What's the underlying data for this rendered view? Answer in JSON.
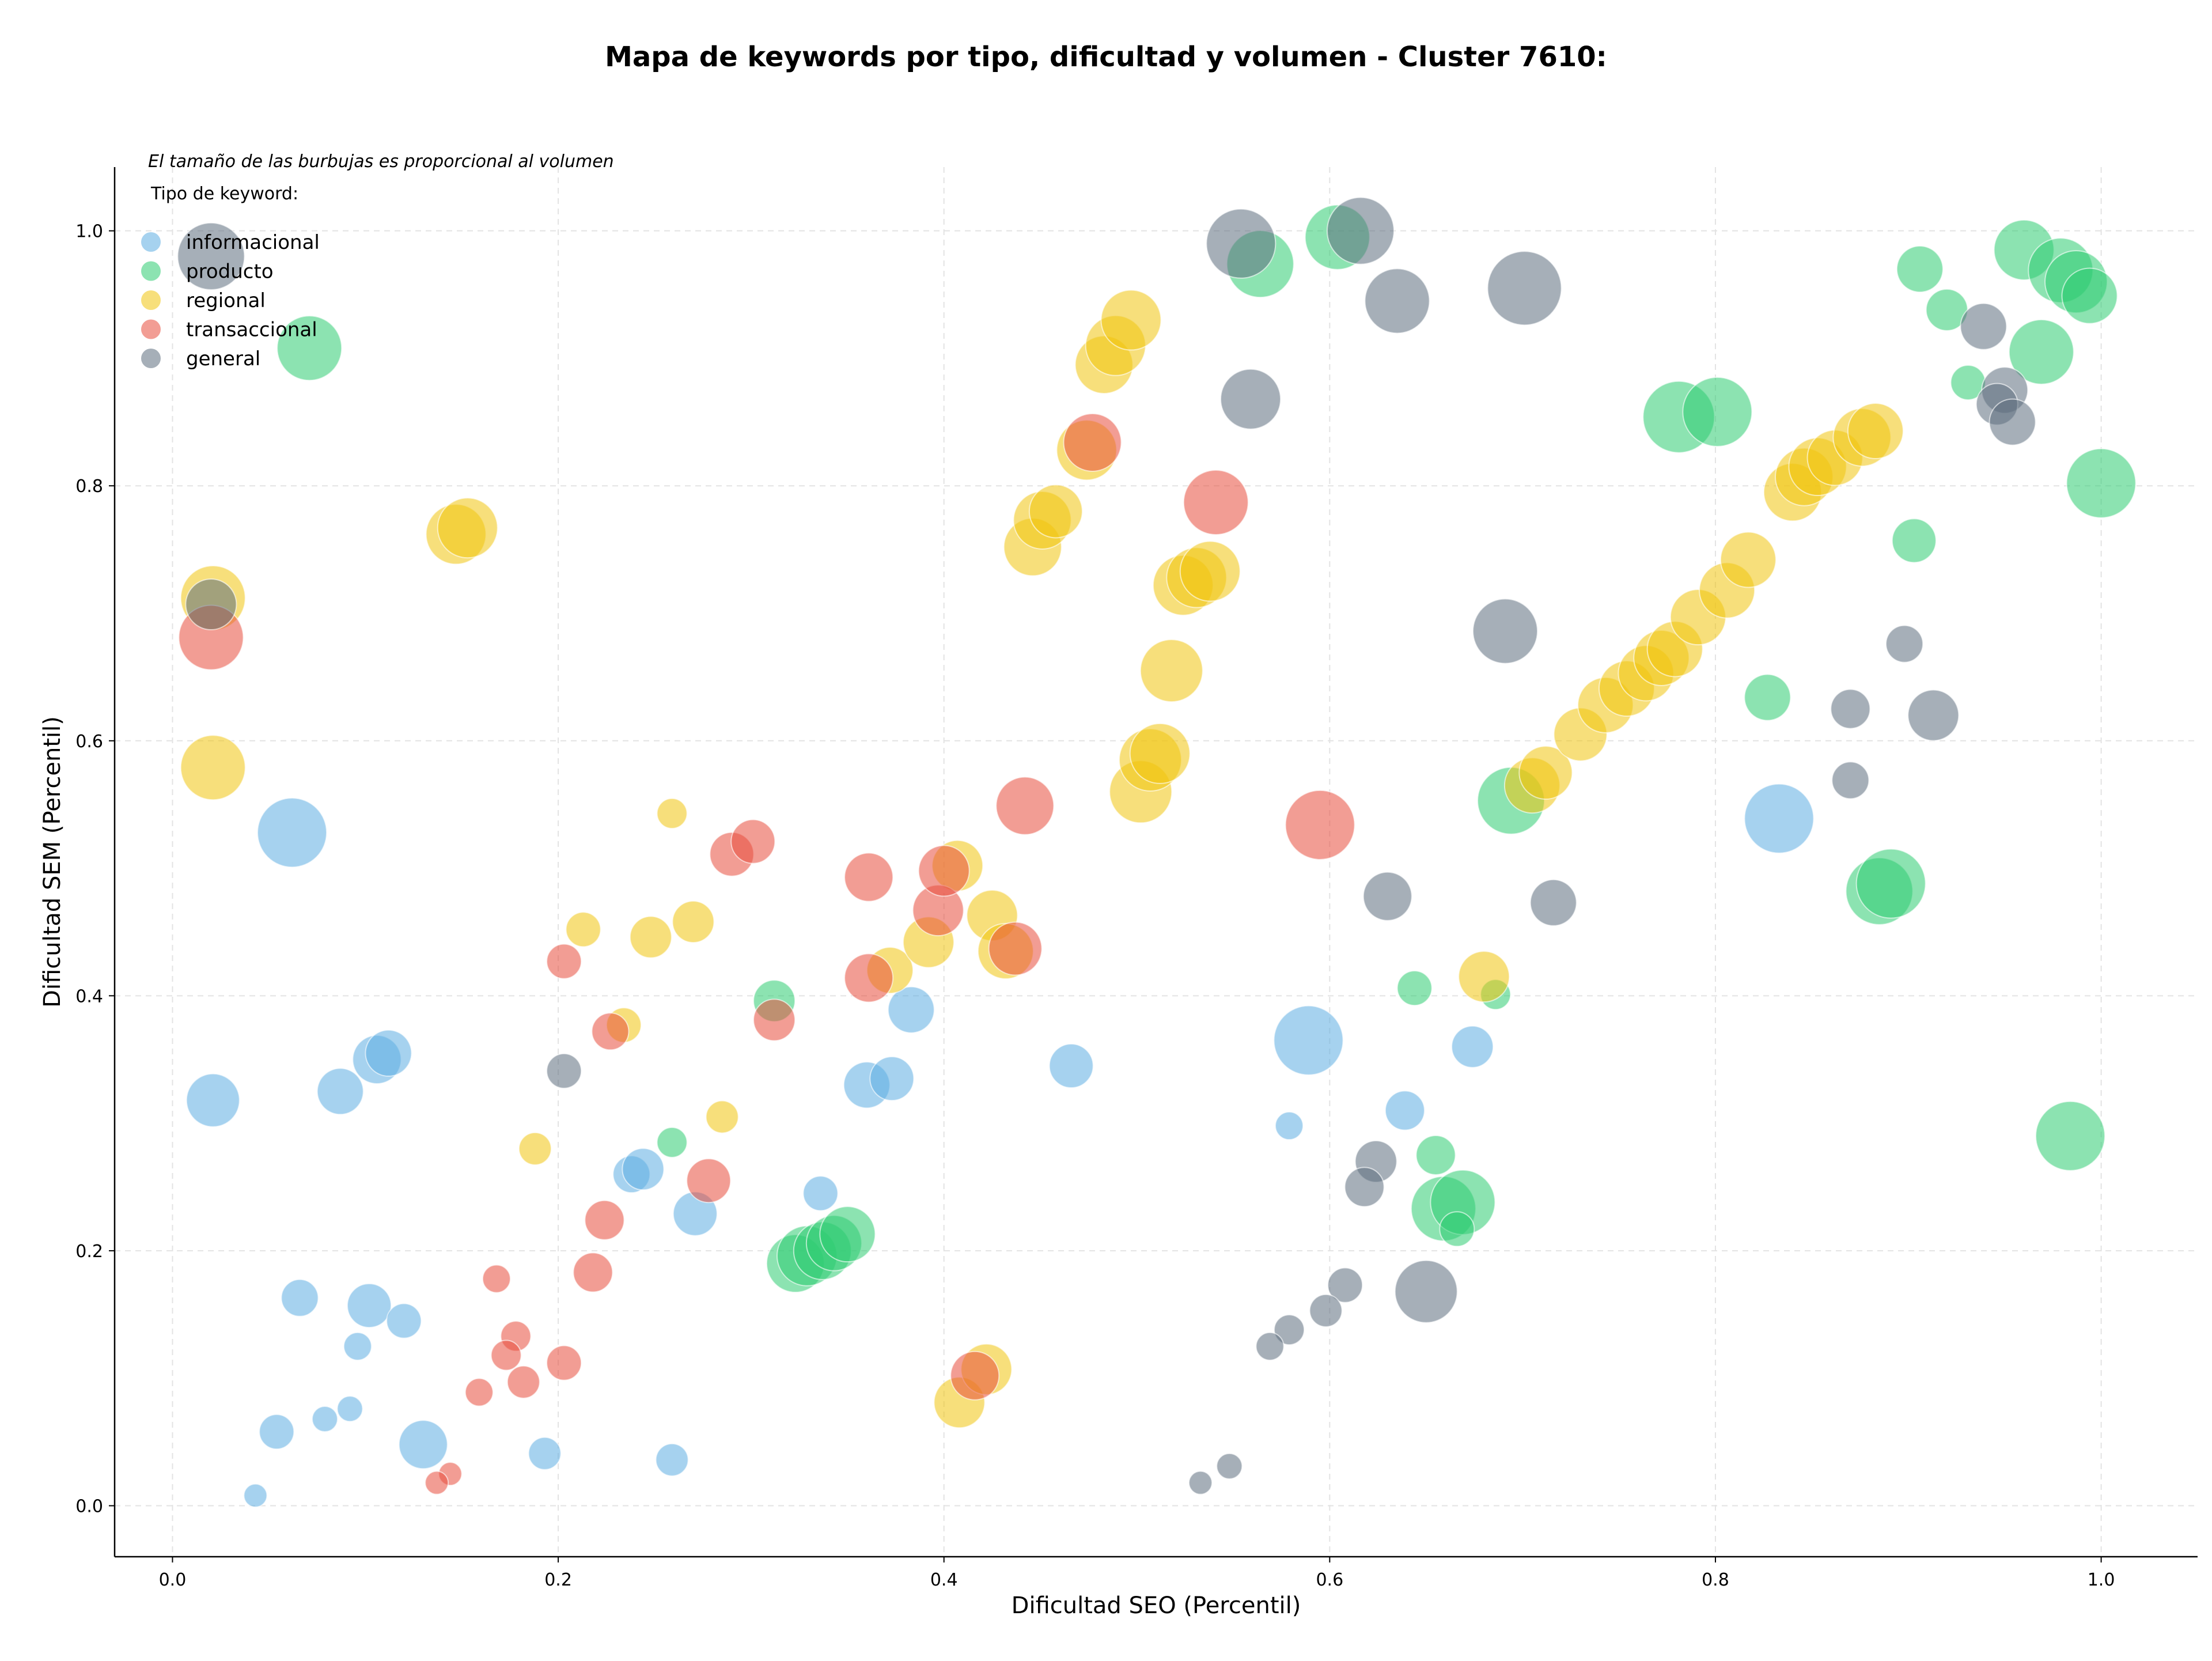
{
  "chart_data": {
    "type": "scatter",
    "title": "Mapa de keywords por tipo, dificultad y volumen - Cluster 7610:",
    "xlabel": "Dificultad SEO (Percentil)",
    "ylabel": "Dificultad SEM (Percentil)",
    "note": "El tamaño de las burbujas es proporcional al volumen",
    "legend_title": "Tipo de keyword:",
    "legend_position": "top-left",
    "grid": true,
    "xlim": [
      -0.03,
      1.05
    ],
    "ylim": [
      -0.04,
      1.05
    ],
    "xticks": [
      0.0,
      0.2,
      0.4,
      0.6,
      0.8,
      1.0
    ],
    "yticks": [
      0.0,
      0.2,
      0.4,
      0.6,
      0.8,
      1.0
    ],
    "xtick_labels": [
      "0.0",
      "0.2",
      "0.4",
      "0.6",
      "0.8",
      "1.0"
    ],
    "ytick_labels": [
      "0.0",
      "0.2",
      "0.4",
      "0.6",
      "0.8",
      "1.0"
    ],
    "series": [
      {
        "name": "informacional",
        "color": "#5DADE2",
        "points": [
          [
            0.062,
            0.528,
            60
          ],
          [
            0.021,
            0.318,
            46
          ],
          [
            0.087,
            0.325,
            40
          ],
          [
            0.106,
            0.35,
            42
          ],
          [
            0.112,
            0.355,
            40
          ],
          [
            0.066,
            0.163,
            32
          ],
          [
            0.102,
            0.157,
            38
          ],
          [
            0.12,
            0.145,
            30
          ],
          [
            0.096,
            0.125,
            24
          ],
          [
            0.054,
            0.058,
            30
          ],
          [
            0.079,
            0.068,
            22
          ],
          [
            0.092,
            0.076,
            22
          ],
          [
            0.13,
            0.048,
            42
          ],
          [
            0.043,
            0.008,
            20
          ],
          [
            0.193,
            0.041,
            28
          ],
          [
            0.259,
            0.036,
            28
          ],
          [
            0.238,
            0.26,
            32
          ],
          [
            0.244,
            0.264,
            36
          ],
          [
            0.271,
            0.229,
            38
          ],
          [
            0.336,
            0.245,
            30
          ],
          [
            0.36,
            0.33,
            40
          ],
          [
            0.373,
            0.335,
            38
          ],
          [
            0.383,
            0.389,
            40
          ],
          [
            0.466,
            0.345,
            38
          ],
          [
            0.589,
            0.365,
            60
          ],
          [
            0.579,
            0.298,
            24
          ],
          [
            0.639,
            0.31,
            34
          ],
          [
            0.674,
            0.36,
            36
          ],
          [
            0.833,
            0.539,
            60
          ]
        ]
      },
      {
        "name": "producto",
        "color": "#2ECC71",
        "points": [
          [
            0.071,
            0.908,
            56
          ],
          [
            0.312,
            0.396,
            36
          ],
          [
            0.259,
            0.285,
            26
          ],
          [
            0.323,
            0.19,
            50
          ],
          [
            0.329,
            0.196,
            52
          ],
          [
            0.337,
            0.2,
            50
          ],
          [
            0.343,
            0.206,
            48
          ],
          [
            0.35,
            0.213,
            48
          ],
          [
            0.564,
            0.974,
            58
          ],
          [
            0.604,
            0.995,
            56
          ],
          [
            0.644,
            0.406,
            30
          ],
          [
            0.655,
            0.275,
            34
          ],
          [
            0.659,
            0.233,
            56
          ],
          [
            0.669,
            0.238,
            56
          ],
          [
            0.666,
            0.217,
            30
          ],
          [
            0.686,
            0.401,
            26
          ],
          [
            0.694,
            0.553,
            58
          ],
          [
            0.781,
            0.854,
            62
          ],
          [
            0.801,
            0.858,
            60
          ],
          [
            0.827,
            0.634,
            40
          ],
          [
            0.885,
            0.482,
            58
          ],
          [
            0.891,
            0.488,
            60
          ],
          [
            0.903,
            0.757,
            38
          ],
          [
            0.906,
            0.97,
            40
          ],
          [
            0.92,
            0.938,
            36
          ],
          [
            0.931,
            0.881,
            30
          ],
          [
            0.96,
            0.985,
            52
          ],
          [
            0.969,
            0.905,
            56
          ],
          [
            0.979,
            0.969,
            56
          ],
          [
            0.987,
            0.96,
            54
          ],
          [
            0.994,
            0.949,
            48
          ],
          [
            1.0,
            0.802,
            60
          ],
          [
            0.984,
            0.29,
            60
          ]
        ]
      },
      {
        "name": "regional",
        "color": "#F1C40F",
        "points": [
          [
            0.021,
            0.712,
            56
          ],
          [
            0.021,
            0.579,
            56
          ],
          [
            0.147,
            0.762,
            52
          ],
          [
            0.153,
            0.767,
            52
          ],
          [
            0.213,
            0.452,
            30
          ],
          [
            0.248,
            0.446,
            36
          ],
          [
            0.27,
            0.458,
            36
          ],
          [
            0.259,
            0.543,
            26
          ],
          [
            0.234,
            0.377,
            30
          ],
          [
            0.188,
            0.28,
            28
          ],
          [
            0.285,
            0.305,
            28
          ],
          [
            0.372,
            0.42,
            40
          ],
          [
            0.392,
            0.442,
            44
          ],
          [
            0.407,
            0.502,
            44
          ],
          [
            0.425,
            0.463,
            44
          ],
          [
            0.432,
            0.435,
            48
          ],
          [
            0.408,
            0.081,
            44
          ],
          [
            0.422,
            0.107,
            44
          ],
          [
            0.446,
            0.752,
            50
          ],
          [
            0.451,
            0.773,
            50
          ],
          [
            0.458,
            0.78,
            46
          ],
          [
            0.474,
            0.828,
            52
          ],
          [
            0.483,
            0.895,
            50
          ],
          [
            0.489,
            0.91,
            52
          ],
          [
            0.497,
            0.93,
            52
          ],
          [
            0.502,
            0.56,
            54
          ],
          [
            0.507,
            0.585,
            54
          ],
          [
            0.512,
            0.59,
            52
          ],
          [
            0.518,
            0.655,
            54
          ],
          [
            0.524,
            0.722,
            52
          ],
          [
            0.531,
            0.728,
            52
          ],
          [
            0.538,
            0.733,
            52
          ],
          [
            0.68,
            0.415,
            44
          ],
          [
            0.705,
            0.565,
            48
          ],
          [
            0.712,
            0.575,
            46
          ],
          [
            0.73,
            0.605,
            46
          ],
          [
            0.743,
            0.628,
            48
          ],
          [
            0.754,
            0.641,
            48
          ],
          [
            0.764,
            0.653,
            48
          ],
          [
            0.772,
            0.665,
            48
          ],
          [
            0.779,
            0.672,
            48
          ],
          [
            0.791,
            0.697,
            48
          ],
          [
            0.806,
            0.718,
            48
          ],
          [
            0.817,
            0.742,
            48
          ],
          [
            0.84,
            0.795,
            50
          ],
          [
            0.846,
            0.807,
            50
          ],
          [
            0.853,
            0.815,
            50
          ],
          [
            0.862,
            0.822,
            48
          ],
          [
            0.876,
            0.838,
            50
          ],
          [
            0.883,
            0.843,
            48
          ]
        ]
      },
      {
        "name": "transaccional",
        "color": "#E74C3C",
        "points": [
          [
            0.02,
            0.681,
            56
          ],
          [
            0.203,
            0.427,
            30
          ],
          [
            0.227,
            0.372,
            32
          ],
          [
            0.224,
            0.224,
            34
          ],
          [
            0.218,
            0.183,
            34
          ],
          [
            0.203,
            0.112,
            30
          ],
          [
            0.182,
            0.097,
            28
          ],
          [
            0.178,
            0.133,
            26
          ],
          [
            0.173,
            0.118,
            26
          ],
          [
            0.168,
            0.178,
            24
          ],
          [
            0.159,
            0.089,
            24
          ],
          [
            0.144,
            0.025,
            20
          ],
          [
            0.137,
            0.018,
            20
          ],
          [
            0.29,
            0.511,
            38
          ],
          [
            0.301,
            0.521,
            38
          ],
          [
            0.278,
            0.255,
            38
          ],
          [
            0.312,
            0.381,
            36
          ],
          [
            0.361,
            0.493,
            42
          ],
          [
            0.361,
            0.414,
            42
          ],
          [
            0.397,
            0.467,
            44
          ],
          [
            0.4,
            0.498,
            44
          ],
          [
            0.437,
            0.437,
            46
          ],
          [
            0.442,
            0.549,
            50
          ],
          [
            0.416,
            0.102,
            42
          ],
          [
            0.477,
            0.834,
            50
          ],
          [
            0.541,
            0.787,
            56
          ],
          [
            0.595,
            0.534,
            60
          ]
        ]
      },
      {
        "name": "general",
        "color": "#5D6D7E",
        "points": [
          [
            0.02,
            0.98,
            58
          ],
          [
            0.02,
            0.707,
            44
          ],
          [
            0.203,
            0.341,
            30
          ],
          [
            0.554,
            0.99,
            60
          ],
          [
            0.616,
            1.0,
            58
          ],
          [
            0.635,
            0.945,
            56
          ],
          [
            0.701,
            0.955,
            64
          ],
          [
            0.559,
            0.868,
            52
          ],
          [
            0.63,
            0.478,
            42
          ],
          [
            0.716,
            0.473,
            40
          ],
          [
            0.691,
            0.686,
            56
          ],
          [
            0.624,
            0.27,
            36
          ],
          [
            0.618,
            0.25,
            34
          ],
          [
            0.65,
            0.168,
            54
          ],
          [
            0.608,
            0.173,
            30
          ],
          [
            0.598,
            0.153,
            28
          ],
          [
            0.579,
            0.138,
            26
          ],
          [
            0.569,
            0.125,
            24
          ],
          [
            0.548,
            0.031,
            22
          ],
          [
            0.533,
            0.018,
            20
          ],
          [
            0.898,
            0.676,
            32
          ],
          [
            0.87,
            0.625,
            34
          ],
          [
            0.913,
            0.62,
            44
          ],
          [
            0.87,
            0.569,
            32
          ],
          [
            0.939,
            0.925,
            40
          ],
          [
            0.95,
            0.875,
            40
          ],
          [
            0.946,
            0.864,
            36
          ],
          [
            0.954,
            0.85,
            40
          ]
        ]
      }
    ]
  }
}
